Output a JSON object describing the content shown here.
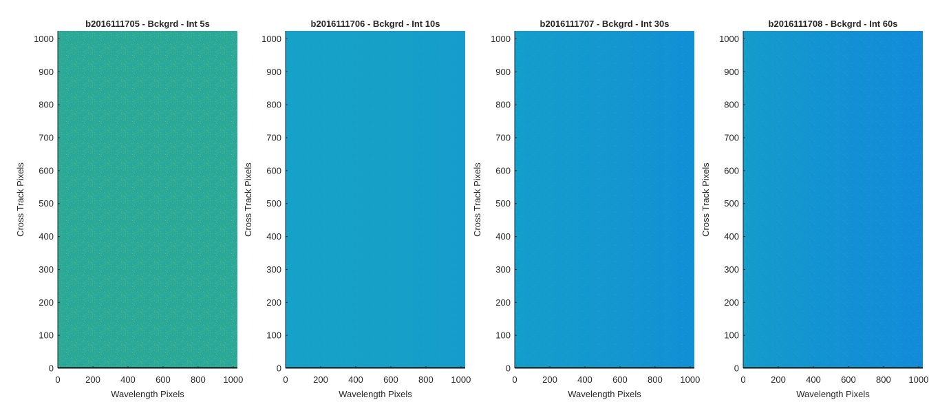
{
  "chart_data": [
    {
      "type": "heatmap",
      "title": "b2016111705 - Bckgrd - Int 5s",
      "xlabel": "Wavelength Pixels",
      "ylabel": "Cross Track Pixels",
      "xlim": [
        0,
        1024
      ],
      "ylim": [
        0,
        1024
      ],
      "xticks": [
        0,
        200,
        400,
        600,
        800,
        1000
      ],
      "yticks": [
        0,
        100,
        200,
        300,
        400,
        500,
        600,
        700,
        800,
        900,
        1000
      ],
      "colors": {
        "base": "#2aa89a",
        "left": "#2aa89a",
        "right": "#2aa89a",
        "speckle": [
          "#5bbb72",
          "#3fb088",
          "#1f9ca5"
        ]
      },
      "noise": "high",
      "bottom_row": "dark"
    },
    {
      "type": "heatmap",
      "title": "b2016111706 - Bckgrd - Int 10s",
      "xlabel": "Wavelength Pixels",
      "ylabel": "Cross Track Pixels",
      "xlim": [
        0,
        1024
      ],
      "ylim": [
        0,
        1024
      ],
      "xticks": [
        0,
        200,
        400,
        600,
        800,
        1000
      ],
      "yticks": [
        0,
        100,
        200,
        300,
        400,
        500,
        600,
        700,
        800,
        900,
        1000
      ],
      "colors": {
        "base": "#16a0c8",
        "left": "#16a2c8",
        "right": "#169ccc",
        "speckle": [
          "#22a9c2",
          "#1496cf"
        ]
      },
      "noise": "low",
      "bottom_row": "dark"
    },
    {
      "type": "heatmap",
      "title": "b2016111707 - Bckgrd - Int 30s",
      "xlabel": "Wavelength Pixels",
      "ylabel": "Cross Track Pixels",
      "xlim": [
        0,
        1024
      ],
      "ylim": [
        0,
        1024
      ],
      "xticks": [
        0,
        200,
        400,
        600,
        800,
        1000
      ],
      "yticks": [
        0,
        100,
        200,
        300,
        400,
        500,
        600,
        700,
        800,
        900,
        1000
      ],
      "colors": {
        "base": "#1497cf",
        "left": "#149ecb",
        "right": "#128fd6",
        "speckle": [
          "#22a6c4",
          "#108ad9"
        ]
      },
      "noise": "low",
      "bottom_row": "dark"
    },
    {
      "type": "heatmap",
      "title": "b2016111708 - Bckgrd - Int 60s",
      "xlabel": "Wavelength Pixels",
      "ylabel": "Cross Track Pixels",
      "xlim": [
        0,
        1024
      ],
      "ylim": [
        0,
        1024
      ],
      "xticks": [
        0,
        200,
        400,
        600,
        800,
        1000
      ],
      "yticks": [
        0,
        100,
        200,
        300,
        400,
        500,
        600,
        700,
        800,
        900,
        1000
      ],
      "colors": {
        "base": "#1391d4",
        "left": "#149cca",
        "right": "#118bd9",
        "speckle": [
          "#22a6c4",
          "#0f86dc"
        ]
      },
      "noise": "low",
      "bottom_row": "dark"
    }
  ]
}
